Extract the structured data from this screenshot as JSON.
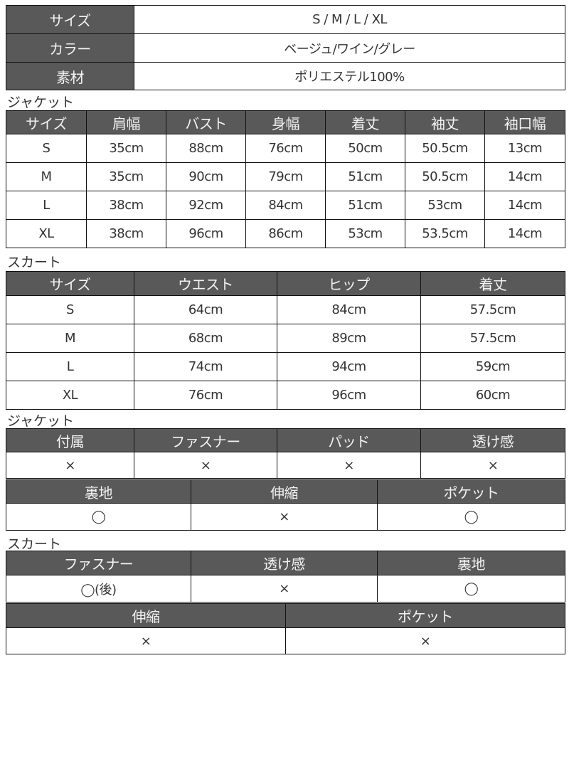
{
  "spec": {
    "rows": [
      {
        "label": "サイズ",
        "value": "S / M / L / XL"
      },
      {
        "label": "カラー",
        "value": "ベージュ/ワイン/グレー"
      },
      {
        "label": "素材",
        "value": "ポリエステル100%"
      }
    ]
  },
  "jacket_size": {
    "title": "ジャケット",
    "headers": [
      "サイズ",
      "肩幅",
      "バスト",
      "身幅",
      "着丈",
      "袖丈",
      "袖口幅"
    ],
    "rows": [
      [
        "S",
        "35cm",
        "88cm",
        "76cm",
        "50cm",
        "50.5cm",
        "13cm"
      ],
      [
        "M",
        "35cm",
        "90cm",
        "79cm",
        "51cm",
        "50.5cm",
        "14cm"
      ],
      [
        "L",
        "38cm",
        "92cm",
        "84cm",
        "51cm",
        "53cm",
        "14cm"
      ],
      [
        "XL",
        "38cm",
        "96cm",
        "86cm",
        "53cm",
        "53.5cm",
        "14cm"
      ]
    ]
  },
  "skirt_size": {
    "title": "スカート",
    "headers": [
      "サイズ",
      "ウエスト",
      "ヒップ",
      "着丈"
    ],
    "rows": [
      [
        "S",
        "64cm",
        "84cm",
        "57.5cm"
      ],
      [
        "M",
        "68cm",
        "89cm",
        "57.5cm"
      ],
      [
        "L",
        "74cm",
        "94cm",
        "59cm"
      ],
      [
        "XL",
        "76cm",
        "96cm",
        "60cm"
      ]
    ]
  },
  "jacket_features": {
    "title": "ジャケット",
    "table1": {
      "headers": [
        "付属",
        "ファスナー",
        "パッド",
        "透け感"
      ],
      "values": [
        "×",
        "×",
        "×",
        "×"
      ]
    },
    "table2": {
      "headers": [
        "裏地",
        "伸縮",
        "ポケット"
      ],
      "values": [
        "◯",
        "×",
        "◯"
      ]
    }
  },
  "skirt_features": {
    "title": "スカート",
    "table1": {
      "headers": [
        "ファスナー",
        "透け感",
        "裏地"
      ],
      "values": [
        "◯(後)",
        "×",
        "◯"
      ]
    },
    "table2": {
      "headers": [
        "伸縮",
        "ポケット"
      ],
      "values": [
        "×",
        "×"
      ]
    }
  }
}
